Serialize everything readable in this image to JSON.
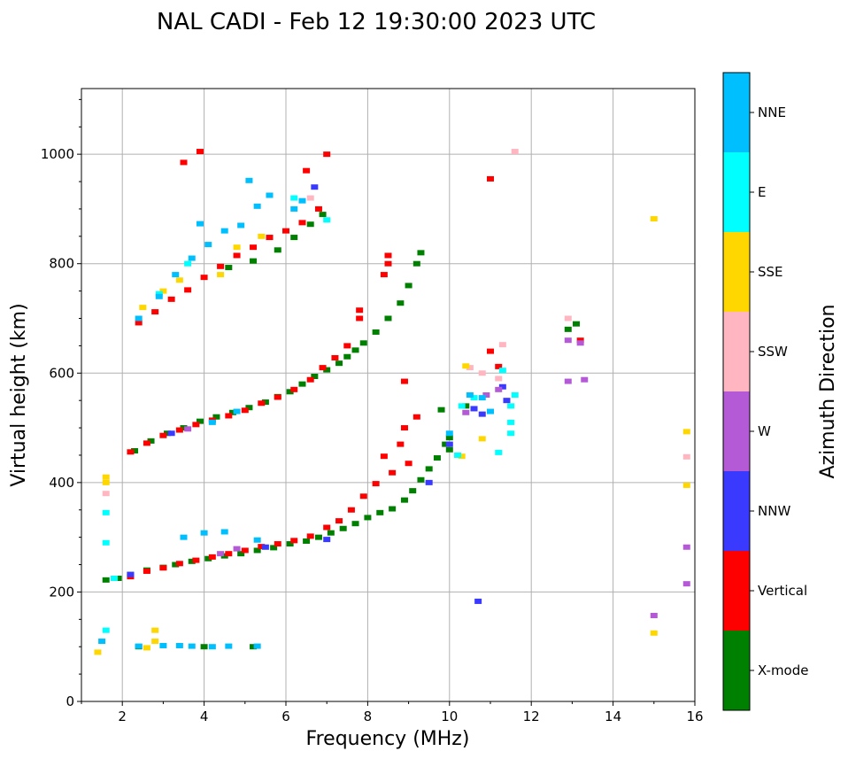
{
  "chart_data": {
    "type": "scatter",
    "title": "NAL CADI - Feb 12 19:30:00 2023 UTC",
    "xlabel": "Frequency (MHz)",
    "ylabel": "Virtual height (km)",
    "xlim": [
      1,
      16
    ],
    "ylim": [
      0,
      1120
    ],
    "xticks": [
      2,
      4,
      6,
      8,
      10,
      12,
      14,
      16
    ],
    "yticks": [
      0,
      200,
      400,
      600,
      800,
      1000
    ],
    "grid": true,
    "colorbar": {
      "title": "Azimuth Direction",
      "categories": [
        {
          "name": "X-mode",
          "color": "#008000"
        },
        {
          "name": "Vertical",
          "color": "#ff0000"
        },
        {
          "name": "NNW",
          "color": "#3a3aff"
        },
        {
          "name": "W",
          "color": "#b45ad6"
        },
        {
          "name": "SSW",
          "color": "#ffb6c1"
        },
        {
          "name": "SSE",
          "color": "#ffd700"
        },
        {
          "name": "E",
          "color": "#00ffff"
        },
        {
          "name": "NNE",
          "color": "#00bfff"
        }
      ]
    },
    "series": [
      {
        "name": "X-mode",
        "points": [
          [
            1.6,
            222
          ],
          [
            1.9,
            225
          ],
          [
            2.2,
            232
          ],
          [
            2.6,
            240
          ],
          [
            3,
            245
          ],
          [
            3.3,
            250
          ],
          [
            3.7,
            256
          ],
          [
            4.1,
            261
          ],
          [
            4.5,
            266
          ],
          [
            4.9,
            270
          ],
          [
            5.3,
            276
          ],
          [
            5.7,
            281
          ],
          [
            6.1,
            288
          ],
          [
            6.5,
            293
          ],
          [
            6.8,
            300
          ],
          [
            7.1,
            308
          ],
          [
            7.4,
            316
          ],
          [
            7.7,
            325
          ],
          [
            8,
            336
          ],
          [
            8.3,
            345
          ],
          [
            8.6,
            352
          ],
          [
            8.9,
            368
          ],
          [
            9.1,
            385
          ],
          [
            9.3,
            405
          ],
          [
            9.5,
            425
          ],
          [
            9.7,
            445
          ],
          [
            9.9,
            470
          ],
          [
            2.3,
            458
          ],
          [
            2.7,
            476
          ],
          [
            3.1,
            490
          ],
          [
            3.5,
            500
          ],
          [
            3.9,
            512
          ],
          [
            4.3,
            520
          ],
          [
            4.7,
            528
          ],
          [
            5.1,
            537
          ],
          [
            5.5,
            547
          ],
          [
            5.8,
            557
          ],
          [
            6.1,
            566
          ],
          [
            6.4,
            580
          ],
          [
            6.7,
            594
          ],
          [
            7,
            606
          ],
          [
            7.3,
            618
          ],
          [
            7.5,
            630
          ],
          [
            7.7,
            642
          ],
          [
            7.9,
            655
          ],
          [
            8.2,
            675
          ],
          [
            8.5,
            700
          ],
          [
            8.8,
            728
          ],
          [
            9,
            760
          ],
          [
            9.2,
            800
          ],
          [
            9.3,
            820
          ],
          [
            4.6,
            793
          ],
          [
            5.2,
            805
          ],
          [
            5.8,
            825
          ],
          [
            6.2,
            848
          ],
          [
            6.6,
            872
          ],
          [
            6.9,
            890
          ],
          [
            2.4,
            100
          ],
          [
            4,
            100
          ],
          [
            5.2,
            100
          ],
          [
            10,
            482
          ],
          [
            10,
            460
          ],
          [
            9.8,
            533
          ],
          [
            10.4,
            540
          ],
          [
            12.9,
            680
          ],
          [
            13.1,
            690
          ]
        ]
      },
      {
        "name": "Vertical",
        "points": [
          [
            2.2,
            228
          ],
          [
            2.6,
            238
          ],
          [
            3,
            244
          ],
          [
            3.4,
            252
          ],
          [
            3.8,
            258
          ],
          [
            4.2,
            264
          ],
          [
            4.6,
            270
          ],
          [
            5,
            276
          ],
          [
            5.4,
            283
          ],
          [
            5.8,
            288
          ],
          [
            6.2,
            294
          ],
          [
            6.6,
            302
          ],
          [
            7,
            318
          ],
          [
            7.3,
            330
          ],
          [
            7.6,
            350
          ],
          [
            7.9,
            375
          ],
          [
            8.2,
            398
          ],
          [
            8.6,
            418
          ],
          [
            9,
            435
          ],
          [
            8.4,
            448
          ],
          [
            2.2,
            456
          ],
          [
            2.6,
            472
          ],
          [
            3,
            486
          ],
          [
            3.4,
            496
          ],
          [
            3.8,
            506
          ],
          [
            4.2,
            514
          ],
          [
            4.6,
            522
          ],
          [
            5,
            532
          ],
          [
            5.4,
            545
          ],
          [
            5.8,
            556
          ],
          [
            6.2,
            570
          ],
          [
            6.6,
            588
          ],
          [
            6.9,
            610
          ],
          [
            7.2,
            628
          ],
          [
            7.5,
            650
          ],
          [
            7.8,
            700
          ],
          [
            7.8,
            715
          ],
          [
            2.4,
            692
          ],
          [
            2.8,
            712
          ],
          [
            3.2,
            735
          ],
          [
            3.6,
            752
          ],
          [
            4,
            775
          ],
          [
            4.4,
            795
          ],
          [
            4.8,
            815
          ],
          [
            5.2,
            830
          ],
          [
            5.6,
            848
          ],
          [
            6,
            860
          ],
          [
            6.4,
            875
          ],
          [
            6.8,
            900
          ],
          [
            8.5,
            800
          ],
          [
            8.5,
            815
          ],
          [
            8.9,
            585
          ],
          [
            8.9,
            500
          ],
          [
            8.8,
            470
          ],
          [
            9.2,
            520
          ],
          [
            11,
            640
          ],
          [
            11.2,
            612
          ],
          [
            13.2,
            660
          ],
          [
            11,
            955
          ],
          [
            7,
            1000
          ],
          [
            3.5,
            985
          ],
          [
            3.9,
            1005
          ],
          [
            6.5,
            970
          ],
          [
            8.4,
            780
          ]
        ]
      },
      {
        "name": "NNW",
        "points": [
          [
            2.2,
            232
          ],
          [
            5.5,
            282
          ],
          [
            6.7,
            940
          ],
          [
            9.5,
            400
          ],
          [
            10,
            470
          ],
          [
            10.6,
            535
          ],
          [
            10.8,
            525
          ],
          [
            11.4,
            550
          ],
          [
            11.3,
            575
          ],
          [
            10.7,
            183
          ],
          [
            3.2,
            490
          ],
          [
            7,
            296
          ]
        ]
      },
      {
        "name": "W",
        "points": [
          [
            4.4,
            270
          ],
          [
            4.8,
            279
          ],
          [
            3.6,
            498
          ],
          [
            10.9,
            560
          ],
          [
            12.9,
            660
          ],
          [
            13.2,
            655
          ],
          [
            13.3,
            588
          ],
          [
            12.9,
            585
          ],
          [
            15,
            157
          ],
          [
            15.8,
            282
          ],
          [
            15.8,
            215
          ],
          [
            11.2,
            570
          ],
          [
            10.4,
            528
          ]
        ]
      },
      {
        "name": "SSW",
        "points": [
          [
            1.6,
            380
          ],
          [
            11.6,
            1005
          ],
          [
            11.3,
            652
          ],
          [
            15.8,
            447
          ],
          [
            6.6,
            920
          ],
          [
            10.8,
            600
          ],
          [
            11.2,
            590
          ],
          [
            10.5,
            610
          ],
          [
            12.9,
            700
          ]
        ]
      },
      {
        "name": "SSE",
        "points": [
          [
            1.6,
            410
          ],
          [
            1.6,
            400
          ],
          [
            2.8,
            130
          ],
          [
            2.8,
            110
          ],
          [
            1.4,
            90
          ],
          [
            15,
            882
          ],
          [
            15,
            125
          ],
          [
            15.8,
            493
          ],
          [
            15.8,
            395
          ],
          [
            10.3,
            448
          ],
          [
            10.8,
            480
          ],
          [
            2.5,
            720
          ],
          [
            3,
            750
          ],
          [
            3.4,
            770
          ],
          [
            4.4,
            780
          ],
          [
            4.8,
            830
          ],
          [
            5.4,
            850
          ],
          [
            10.4,
            613
          ],
          [
            2.6,
            98
          ]
        ]
      },
      {
        "name": "E",
        "points": [
          [
            1.6,
            130
          ],
          [
            1.6,
            345
          ],
          [
            1.6,
            290
          ],
          [
            1.8,
            225
          ],
          [
            2.9,
            745
          ],
          [
            3.6,
            800
          ],
          [
            10.3,
            540
          ],
          [
            10.6,
            555
          ],
          [
            11.5,
            490
          ],
          [
            11.6,
            560
          ],
          [
            11.2,
            455
          ],
          [
            11.3,
            605
          ],
          [
            11.5,
            540
          ],
          [
            11.5,
            510
          ],
          [
            6.2,
            920
          ],
          [
            7,
            880
          ],
          [
            10.2,
            450
          ]
        ]
      },
      {
        "name": "NNE",
        "points": [
          [
            1.5,
            110
          ],
          [
            2.4,
            101
          ],
          [
            3,
            102
          ],
          [
            3.4,
            102
          ],
          [
            3.7,
            101
          ],
          [
            4.2,
            100
          ],
          [
            4.6,
            101
          ],
          [
            5.3,
            101
          ],
          [
            3.5,
            300
          ],
          [
            4,
            308
          ],
          [
            4.5,
            310
          ],
          [
            5.3,
            295
          ],
          [
            4.2,
            510
          ],
          [
            4.8,
            530
          ],
          [
            2.4,
            700
          ],
          [
            2.9,
            740
          ],
          [
            3.3,
            780
          ],
          [
            3.7,
            810
          ],
          [
            4.1,
            835
          ],
          [
            4.5,
            860
          ],
          [
            4.9,
            870
          ],
          [
            5.3,
            905
          ],
          [
            5.6,
            925
          ],
          [
            6.2,
            900
          ],
          [
            6.4,
            915
          ],
          [
            10,
            490
          ],
          [
            10.5,
            560
          ],
          [
            11,
            530
          ],
          [
            5.1,
            952
          ],
          [
            3.9,
            873
          ],
          [
            10.8,
            555
          ]
        ]
      }
    ]
  }
}
